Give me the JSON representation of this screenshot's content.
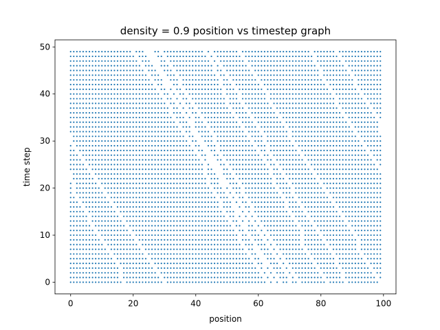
{
  "chart_data": {
    "type": "scatter",
    "title": "density = 0.9 position vs timestep graph",
    "xlabel": "position",
    "ylabel": "time step",
    "xlim": [
      -5.0,
      104.0
    ],
    "ylim": [
      -2.5,
      51.5
    ],
    "xticks": [
      0,
      20,
      40,
      60,
      80,
      100
    ],
    "yticks": [
      0,
      10,
      20,
      30,
      40,
      50
    ],
    "grid": false,
    "marker_color": "#1f77b4",
    "lattice_sites": 100,
    "timesteps": 50,
    "density": 0.9,
    "occupancy_note": "Each dot = an occupied cell (position, time step); ~90 of 100 cells filled per row, with empty gaps drifting leftward over time."
  }
}
